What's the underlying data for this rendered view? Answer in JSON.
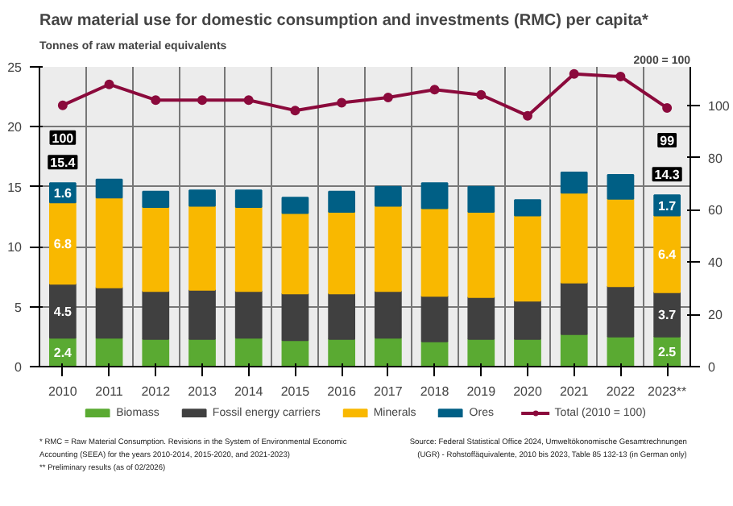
{
  "chart_data": {
    "type": "bar",
    "stacked": true,
    "title": "Raw material use for domestic consumption and investments (RMC) per capita*",
    "ylabel": "Tonnes of raw material equivalents",
    "y2label": "2000 = 100",
    "categories": [
      "2010",
      "2011",
      "2012",
      "2013",
      "2014",
      "2015",
      "2016",
      "2017",
      "2018",
      "2019",
      "2020",
      "2021",
      "2022",
      "2023**"
    ],
    "series": [
      {
        "name": "Biomass",
        "color": "#5aaa32",
        "values": [
          2.4,
          2.4,
          2.3,
          2.3,
          2.4,
          2.2,
          2.3,
          2.4,
          2.1,
          2.3,
          2.3,
          2.7,
          2.5,
          2.5
        ],
        "value_labels": [
          "2.4",
          null,
          null,
          null,
          null,
          null,
          null,
          null,
          null,
          null,
          null,
          null,
          null,
          "2.5"
        ]
      },
      {
        "name": "Fossil energy carriers",
        "color": "#404040",
        "values": [
          4.5,
          4.2,
          4.0,
          4.1,
          3.9,
          3.9,
          3.8,
          3.9,
          3.8,
          3.5,
          3.2,
          4.3,
          4.2,
          3.7
        ],
        "value_labels": [
          "4.5",
          null,
          null,
          null,
          null,
          null,
          null,
          null,
          null,
          null,
          null,
          null,
          null,
          "3.7"
        ]
      },
      {
        "name": "Minerals",
        "color": "#f9b800",
        "values": [
          6.8,
          7.5,
          7.0,
          7.0,
          7.0,
          6.7,
          6.8,
          7.1,
          7.3,
          7.1,
          7.1,
          7.5,
          7.3,
          6.4
        ],
        "value_labels": [
          "6.8",
          null,
          null,
          null,
          null,
          null,
          null,
          null,
          null,
          null,
          null,
          null,
          null,
          "6.4"
        ]
      },
      {
        "name": "Ores",
        "color": "#005f85",
        "values": [
          1.6,
          1.5,
          1.3,
          1.3,
          1.4,
          1.3,
          1.7,
          1.6,
          2.1,
          2.1,
          1.3,
          1.7,
          2.0,
          1.7
        ],
        "value_labels": [
          "1.6",
          null,
          null,
          null,
          null,
          null,
          null,
          null,
          null,
          null,
          null,
          null,
          null,
          "1.7"
        ]
      },
      {
        "name": "Total (2010 = 100)",
        "type": "line",
        "axis": "y2",
        "marker": "circle",
        "color": "#8b0a3c",
        "values": [
          100,
          108,
          102,
          102,
          102,
          98,
          101,
          103,
          106,
          104,
          96,
          112,
          111,
          99
        ],
        "value_labels": [
          "100",
          null,
          null,
          null,
          null,
          null,
          null,
          null,
          null,
          null,
          null,
          null,
          null,
          "99"
        ]
      }
    ],
    "totals": [
      "15.4",
      null,
      null,
      null,
      null,
      null,
      null,
      null,
      null,
      null,
      null,
      null,
      null,
      "14.3"
    ],
    "ylim": [
      0,
      25
    ],
    "yticks": [
      0,
      5,
      10,
      15,
      20,
      25
    ],
    "y2lim": [
      0,
      114.7
    ],
    "y2ticks": [
      0,
      20,
      40,
      60,
      80,
      100
    ],
    "grid": true,
    "legend": "bottom",
    "annotations": [
      "* RMC = Raw Material Consumption. Revisions in the System of Environmental Economic\nAccounting (SEEA) for the years 2010-2014, 2015-2020, and 2021-2023)\n** Preliminary results (as of 02/2026)",
      "Source: Federal Statistical Office 2024, Umweltökonomische Gesamtrechnungen\n(UGR) - Rohstoffäquivalente, 2010 bis 2023, Table 85 132-13 (in German only)"
    ]
  }
}
